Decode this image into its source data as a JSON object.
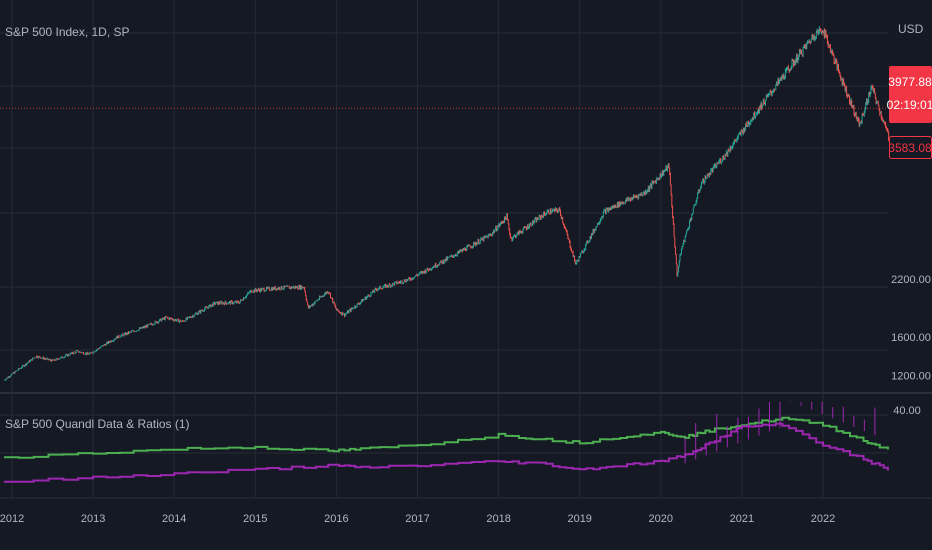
{
  "main_pane": {
    "title": "S&P 500 Index, 1D, SP",
    "currency": "USD",
    "price_tag": "3977.88",
    "countdown_tag": "02:19:01",
    "low_tag": "3583.08",
    "y_ticks": [
      "2200.00",
      "1600.00",
      "1200.00"
    ]
  },
  "indicator_pane": {
    "title": "S&P 500 Quandl Data & Ratios (1)",
    "y_ticks": [
      "40.00"
    ]
  },
  "x_axis": {
    "ticks": [
      "2012",
      "2013",
      "2014",
      "2015",
      "2016",
      "2017",
      "2018",
      "2019",
      "2020",
      "2021",
      "2022"
    ]
  },
  "colors": {
    "background": "#151924",
    "grid": "#262a36",
    "text": "#b2b5be",
    "up": "#26a69a",
    "down": "#ef5350",
    "price_line": "#c0392b",
    "price_tag": "#f23645",
    "series_green": "#4caf50",
    "series_purple": "#9c27b0"
  },
  "chart_data": [
    {
      "type": "line",
      "title": "S&P 500 Index, 1D, SP",
      "ylabel": "USD",
      "x": [
        2011.9,
        2012.3,
        2012.5,
        2012.8,
        2012.95,
        2013.3,
        2013.6,
        2013.9,
        2014.1,
        2014.5,
        2014.8,
        2014.95,
        2015.3,
        2015.6,
        2015.65,
        2015.9,
        2016.0,
        2016.1,
        2016.5,
        2016.9,
        2017.3,
        2017.9,
        2018.1,
        2018.15,
        2018.6,
        2018.75,
        2018.95,
        2019.3,
        2019.5,
        2019.8,
        2020.1,
        2020.2,
        2020.25,
        2020.5,
        2020.8,
        2021.1,
        2021.5,
        2021.9,
        2022.0,
        2022.2,
        2022.45,
        2022.6,
        2022.7,
        2022.85
      ],
      "values": [
        1150,
        1400,
        1350,
        1450,
        1420,
        1600,
        1690,
        1800,
        1760,
        1950,
        1960,
        2080,
        2110,
        2120,
        1900,
        2080,
        1880,
        1830,
        2100,
        2200,
        2380,
        2660,
        2850,
        2620,
        2900,
        2920,
        2360,
        2900,
        2990,
        3100,
        3380,
        2240,
        2500,
        3200,
        3500,
        3850,
        4300,
        4750,
        4800,
        4350,
        3800,
        4200,
        3950,
        3583
      ],
      "ylim": [
        1100,
        5000
      ],
      "last_price": 3977.88
    },
    {
      "type": "line",
      "title": "S&P 500 Quandl Data & Ratios (1)",
      "x": [
        2011.9,
        2013.0,
        2014.0,
        2015.0,
        2015.9,
        2016.3,
        2017.0,
        2018.0,
        2018.5,
        2019.0,
        2019.5,
        2020.0,
        2020.3,
        2020.6,
        2021.0,
        2021.5,
        2022.0,
        2022.5,
        2022.8
      ],
      "series": [
        {
          "values": [
            17,
            19,
            21,
            22,
            20,
            21,
            23,
            28,
            26,
            24,
            27,
            29,
            27,
            30,
            33,
            36,
            33,
            25,
            21
          ]
        },
        {
          "values": [
            5,
            7,
            9,
            11,
            13,
            12,
            13,
            15,
            14,
            11,
            13,
            15,
            18,
            24,
            32,
            33,
            23,
            16,
            11
          ]
        }
      ],
      "ylim": [
        0,
        45
      ]
    }
  ]
}
